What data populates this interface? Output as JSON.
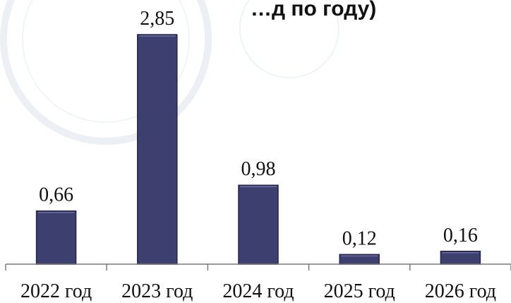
{
  "chart_data": {
    "type": "bar",
    "title_visible_fragment": "…д по году)",
    "categories": [
      "2022 год",
      "2023 год",
      "2024 год",
      "2025 год",
      "2026 год"
    ],
    "values": [
      0.66,
      2.85,
      0.98,
      0.12,
      0.16
    ],
    "value_labels": [
      "0,66",
      "2,85",
      "0,98",
      "0,12",
      "0,16"
    ],
    "xlabel": "",
    "ylabel": "",
    "ylim": [
      0,
      2.85
    ],
    "grid": false,
    "legend": "none",
    "colors": {
      "bar_fill": "#3d3f6e",
      "bar_stroke": "#25264a",
      "axis": "#7a7a7a",
      "watermark": "#d7e0ea"
    }
  }
}
